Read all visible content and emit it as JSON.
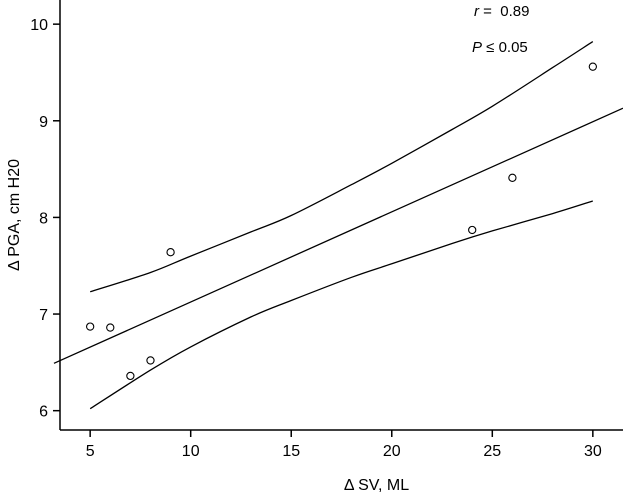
{
  "chart_data": {
    "type": "scatter",
    "xlabel": "Δ SV, ML",
    "ylabel": "Δ PGA, cm H20",
    "xlim": [
      3.5,
      31.5
    ],
    "ylim": [
      5.8,
      10.25
    ],
    "xticks": [
      5,
      10,
      15,
      20,
      25,
      30
    ],
    "yticks": [
      6,
      7,
      8,
      9,
      10
    ],
    "xtick_labels": [
      "5",
      "10",
      "15",
      "20",
      "25",
      "30"
    ],
    "ytick_labels": [
      "6",
      "7",
      "8",
      "9",
      "10"
    ],
    "grid": false,
    "points": [
      {
        "x": 5,
        "y": 6.87
      },
      {
        "x": 6,
        "y": 6.86
      },
      {
        "x": 7,
        "y": 6.36
      },
      {
        "x": 8,
        "y": 6.52
      },
      {
        "x": 9,
        "y": 7.64
      },
      {
        "x": 24,
        "y": 7.87
      },
      {
        "x": 26,
        "y": 8.41
      },
      {
        "x": 30,
        "y": 9.56
      }
    ],
    "regression_line": [
      {
        "x": 3.2,
        "y": 6.49
      },
      {
        "x": 31.5,
        "y": 9.13
      }
    ],
    "upper_band": [
      {
        "x": 5,
        "y": 7.23
      },
      {
        "x": 8,
        "y": 7.43
      },
      {
        "x": 10,
        "y": 7.6
      },
      {
        "x": 13,
        "y": 7.85
      },
      {
        "x": 15,
        "y": 8.02
      },
      {
        "x": 18,
        "y": 8.34
      },
      {
        "x": 20,
        "y": 8.56
      },
      {
        "x": 23,
        "y": 8.91
      },
      {
        "x": 25,
        "y": 9.15
      },
      {
        "x": 28,
        "y": 9.55
      },
      {
        "x": 30,
        "y": 9.82
      }
    ],
    "lower_band": [
      {
        "x": 5,
        "y": 6.02
      },
      {
        "x": 8,
        "y": 6.42
      },
      {
        "x": 10,
        "y": 6.66
      },
      {
        "x": 13,
        "y": 6.97
      },
      {
        "x": 15,
        "y": 7.14
      },
      {
        "x": 18,
        "y": 7.38
      },
      {
        "x": 20,
        "y": 7.52
      },
      {
        "x": 23,
        "y": 7.73
      },
      {
        "x": 25,
        "y": 7.86
      },
      {
        "x": 28,
        "y": 8.04
      },
      {
        "x": 30,
        "y": 8.17
      }
    ],
    "annotations": {
      "r_symbol": "r",
      "r_value": " =  0.89",
      "p_symbol": "P",
      "p_value": " ≤ 0.05"
    }
  }
}
